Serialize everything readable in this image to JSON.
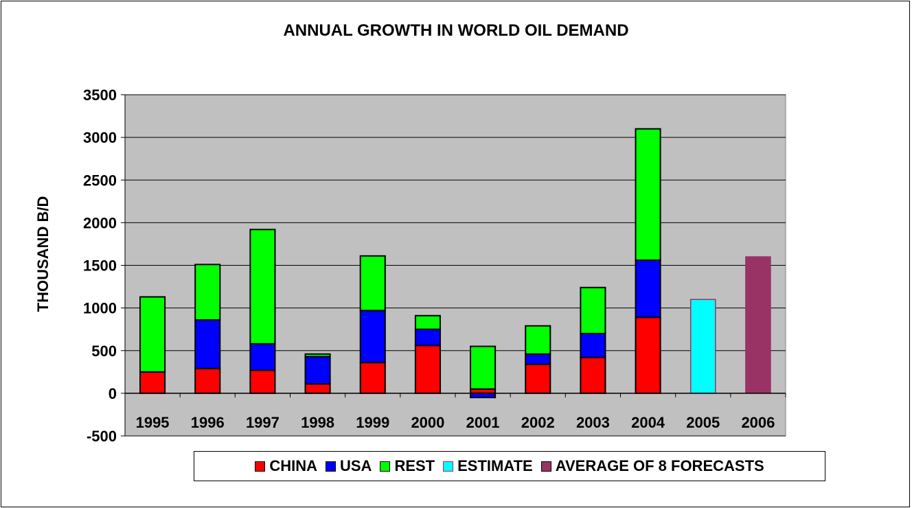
{
  "chart_data": {
    "type": "bar",
    "stacked": true,
    "title": "ANNUAL GROWTH IN WORLD OIL DEMAND",
    "ylabel": "THOUSAND B/D",
    "xlabel": "",
    "ylim": [
      -500,
      3500
    ],
    "yticks": [
      "-500",
      "0",
      "500",
      "1000",
      "1500",
      "2000",
      "2500",
      "3000",
      "3500"
    ],
    "grid": true,
    "legend_position": "bottom",
    "categories": [
      "1995",
      "1996",
      "1997",
      "1998",
      "1999",
      "2000",
      "2001",
      "2002",
      "2003",
      "2004",
      "2005",
      "2006"
    ],
    "series": [
      {
        "name": "CHINA",
        "color": "#ff0000",
        "values": [
          250,
          290,
          270,
          110,
          360,
          560,
          50,
          340,
          420,
          890,
          null,
          null
        ]
      },
      {
        "name": "USA",
        "color": "#0000ff",
        "values": [
          0,
          570,
          310,
          320,
          610,
          190,
          -50,
          120,
          280,
          670,
          null,
          null
        ]
      },
      {
        "name": "REST",
        "color": "#00ff00",
        "values": [
          880,
          650,
          1340,
          30,
          640,
          160,
          500,
          330,
          540,
          1540,
          null,
          null
        ]
      },
      {
        "name": "ESTIMATE",
        "color": "#00ffff",
        "values": [
          null,
          null,
          null,
          null,
          null,
          null,
          null,
          null,
          null,
          null,
          1100,
          null
        ]
      },
      {
        "name": "AVERAGE OF 8 FORECASTS",
        "color": "#993366",
        "values": [
          null,
          null,
          null,
          null,
          null,
          null,
          null,
          null,
          null,
          null,
          null,
          1600
        ]
      }
    ],
    "colors": {
      "plot_background": "#c0c0c0",
      "gridline": "#000000"
    }
  }
}
